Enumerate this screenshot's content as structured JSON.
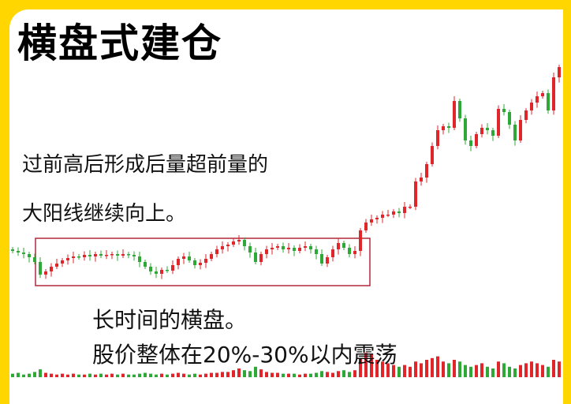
{
  "title": "横盘式建仓",
  "annotation_breakout": [
    "过前高后形成后量超前量的",
    "大阳线继续向上。"
  ],
  "annotation_range": [
    "长时间的横盘。",
    "股价整体在20%-30%以内震荡"
  ],
  "colors": {
    "frame": "#ffd600",
    "up": "#e0262b",
    "down": "#2ea836",
    "box": "#b0283a"
  },
  "chart_data": {
    "type": "candlestick",
    "title": "",
    "xlabel": "",
    "ylabel": "",
    "grid": false,
    "axes_visible": false,
    "closes": [
      4.2,
      4.0,
      3.8,
      3.4,
      2.8,
      1.2,
      1.6,
      2.2,
      2.6,
      3.0,
      3.3,
      3.5,
      3.4,
      3.7,
      3.5,
      3.8,
      3.6,
      3.7,
      3.8,
      3.6,
      3.8,
      3.7,
      3.5,
      2.8,
      2.2,
      1.6,
      1.3,
      1.8,
      1.7,
      2.4,
      3.2,
      3.5,
      3.0,
      2.4,
      2.7,
      3.2,
      3.8,
      4.4,
      4.8,
      5.0,
      5.4,
      5.6,
      4.8,
      4.0,
      2.8,
      3.8,
      4.4,
      4.6,
      4.8,
      4.4,
      4.6,
      4.2,
      4.6,
      4.8,
      4.4,
      3.8,
      2.6,
      3.4,
      4.4,
      5.2,
      4.6,
      3.8,
      4.2,
      6.8,
      7.8,
      8.2,
      8.4,
      8.8,
      8.8,
      9.2,
      9.0,
      9.8,
      9.8,
      13.0,
      13.5,
      15.2,
      17.5,
      19.5,
      20.0,
      19.8,
      23.2,
      21.0,
      18.2,
      17.5,
      19.0,
      19.8,
      19.5,
      18.8,
      22.2,
      21.8,
      20.2,
      18.2,
      20.8,
      22.0,
      23.0,
      23.8,
      24.2,
      22.0,
      26.2,
      27.5
    ],
    "volumes": [
      4,
      5,
      3,
      4,
      6,
      9,
      5,
      4,
      3,
      4,
      3,
      4,
      3,
      3,
      4,
      3,
      4,
      3,
      4,
      3,
      4,
      3,
      3,
      4,
      5,
      4,
      3,
      4,
      3,
      4,
      5,
      4,
      3,
      4,
      3,
      4,
      5,
      5,
      6,
      6,
      8,
      10,
      8,
      7,
      12,
      9,
      6,
      5,
      5,
      4,
      4,
      4,
      3,
      4,
      4,
      5,
      7,
      6,
      5,
      7,
      8,
      6,
      8,
      22,
      28,
      26,
      20,
      18,
      16,
      14,
      12,
      14,
      12,
      18,
      16,
      20,
      22,
      24,
      18,
      16,
      20,
      18,
      14,
      12,
      14,
      16,
      12,
      10,
      18,
      16,
      12,
      10,
      14,
      16,
      18,
      16,
      14,
      12,
      20,
      18
    ],
    "highlight_box": {
      "from_index": 4,
      "to_index": 64
    }
  }
}
